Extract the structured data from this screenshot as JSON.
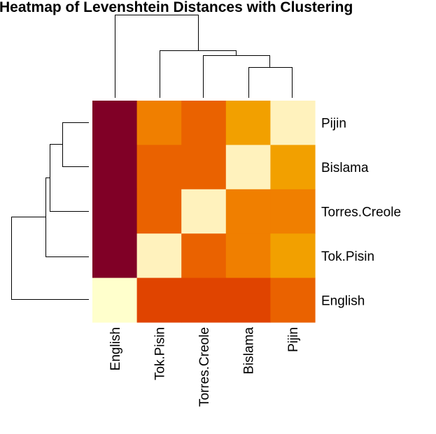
{
  "chart_data": {
    "type": "heatmap",
    "title": "Heatmap of Levenshtein Distances with Clustering",
    "columns": [
      "English",
      "Tok.Pisin",
      "Torres.Creole",
      "Bislama",
      "Pijin"
    ],
    "rows": [
      "Pijin",
      "Bislama",
      "Torres.Creole",
      "Tok.Pisin",
      "English"
    ],
    "cells": [
      [
        "#800026",
        "#F07F00",
        "#EA6200",
        "#F2A000",
        "#FFF2BD"
      ],
      [
        "#800026",
        "#EA6200",
        "#EA6200",
        "#FFF2BD",
        "#F2A000"
      ],
      [
        "#800026",
        "#EA6200",
        "#FFF2BD",
        "#F07F00",
        "#F07F00"
      ],
      [
        "#800026",
        "#FFF2BD",
        "#EA6200",
        "#F07F00",
        "#F2A000"
      ],
      [
        "#FFFFCC",
        "#E04400",
        "#E04400",
        "#E04400",
        "#EA6200"
      ]
    ],
    "column_dendrogram": true,
    "row_dendrogram": true,
    "legend": "none"
  }
}
